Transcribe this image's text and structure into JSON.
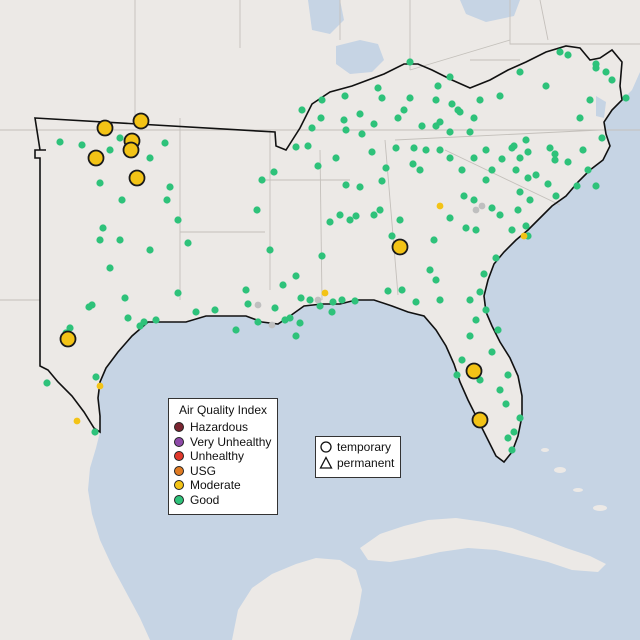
{
  "colors": {
    "land": "#ece9e6",
    "water": "#c6d4e4",
    "state_border": "#c4c0bb",
    "region_outline": "#111111",
    "good": "#2ec27a",
    "moderate": "#f3c316",
    "usg": "#e07b22",
    "unhealthy": "#e0382b",
    "very_unhealthy": "#8e4aa8",
    "hazardous": "#7a2530",
    "no_data": "#bfbfbf"
  },
  "legend_aqi": {
    "title": "Air Quality Index",
    "items": [
      {
        "label": "Hazardous",
        "color": "#7a2530"
      },
      {
        "label": "Very Unhealthy",
        "color": "#8e4aa8"
      },
      {
        "label": "Unhealthy",
        "color": "#e0382b"
      },
      {
        "label": "USG",
        "color": "#e07b22"
      },
      {
        "label": "Moderate",
        "color": "#f3c316"
      },
      {
        "label": "Good",
        "color": "#2ec27a"
      }
    ]
  },
  "legend_type": {
    "items": [
      {
        "label": "temporary",
        "symbol": "circle"
      },
      {
        "label": "permanent",
        "symbol": "triangle"
      }
    ]
  }
}
